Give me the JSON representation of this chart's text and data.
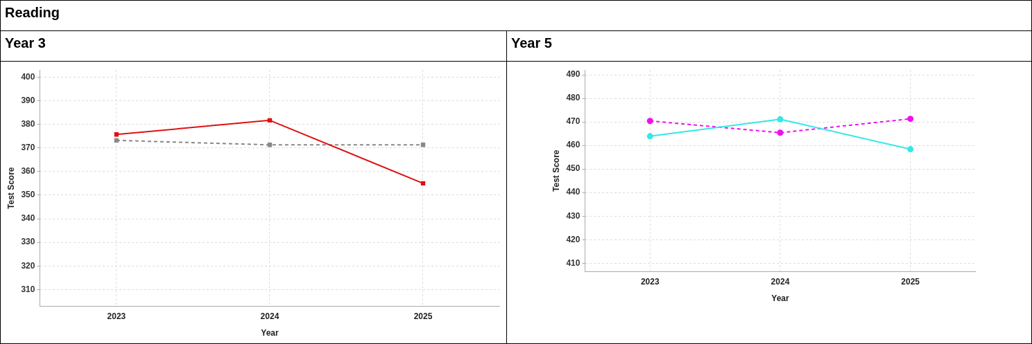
{
  "chart_data": [
    {
      "type": "other",
      "title": "Reading"
    },
    {
      "type": "line",
      "title": "Year 3",
      "xlabel": "Year",
      "ylabel": "Test Score",
      "categories": [
        "2023",
        "2024",
        "2025"
      ],
      "series": [
        {
          "color": "#e01010",
          "values": [
            375.7,
            381.7,
            355
          ],
          "line_style": "solid"
        },
        {
          "color": "#888888",
          "values": [
            373.2,
            371.3,
            371.3
          ],
          "line_style": "dashed"
        }
      ],
      "ylim": [
        303,
        403
      ],
      "yticks": [
        310,
        320,
        330,
        340,
        350,
        360,
        370,
        380,
        390,
        400
      ],
      "grid": true,
      "legend": false,
      "marker": "square"
    },
    {
      "type": "line",
      "title": "Year 5",
      "xlabel": "Year",
      "ylabel": "Test Score",
      "categories": [
        "2023",
        "2024",
        "2025"
      ],
      "series": [
        {
          "color": "#33e8e8",
          "values": [
            463.9,
            471.1,
            458.4
          ],
          "line_style": "solid"
        },
        {
          "color": "#ee11ee",
          "values": [
            470.4,
            465.4,
            471.3
          ],
          "line_style": "dashed"
        }
      ],
      "ylim": [
        406.5,
        492
      ],
      "yticks": [
        410,
        420,
        430,
        440,
        450,
        460,
        470,
        480,
        490
      ],
      "grid": true,
      "legend": false,
      "marker": "circle"
    }
  ]
}
